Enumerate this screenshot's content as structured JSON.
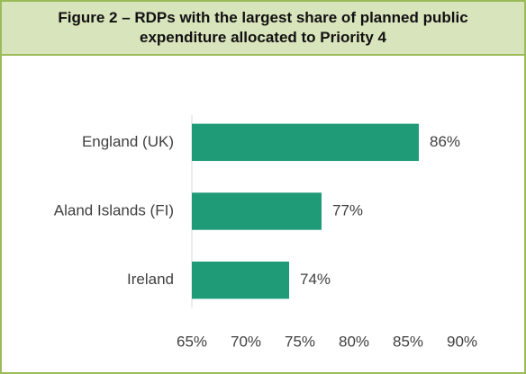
{
  "chart_data": {
    "type": "bar",
    "orientation": "horizontal",
    "title": "Figure 2 – RDPs with the largest share of planned public expenditure allocated to Priority 4",
    "categories": [
      "England (UK)",
      "Aland Islands (FI)",
      "Ireland"
    ],
    "values": [
      86,
      77,
      74
    ],
    "value_labels": [
      "86%",
      "77%",
      "74%"
    ],
    "color": "#1f9b78",
    "xlim": [
      65,
      90
    ],
    "xticks": [
      {
        "value": 65,
        "label": "65%"
      },
      {
        "value": 70,
        "label": "70%"
      },
      {
        "value": 75,
        "label": "75%"
      },
      {
        "value": 80,
        "label": "80%"
      },
      {
        "value": 85,
        "label": "85%"
      },
      {
        "value": 90,
        "label": "90%"
      }
    ],
    "grid": false
  }
}
